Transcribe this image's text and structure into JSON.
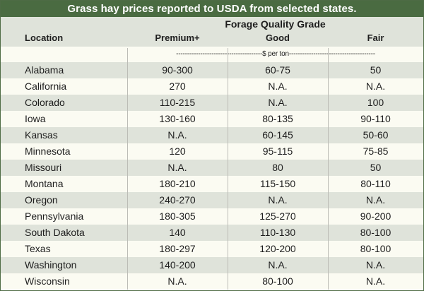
{
  "chart_data": {
    "type": "table",
    "title": "Grass hay prices reported to USDA from selected states.",
    "group_header": "Forage Quality Grade",
    "columns": [
      "Location",
      "Premium+",
      "Good",
      "Fair"
    ],
    "units": "---------------------------------------$ per ton---------------------------------------",
    "rows": [
      {
        "location": "Alabama",
        "premium": "90-300",
        "good": "60-75",
        "fair": "50"
      },
      {
        "location": "California",
        "premium": "270",
        "good": "N.A.",
        "fair": "N.A."
      },
      {
        "location": "Colorado",
        "premium": "110-215",
        "good": "N.A.",
        "fair": "100"
      },
      {
        "location": "Iowa",
        "premium": "130-160",
        "good": "80-135",
        "fair": "90-110"
      },
      {
        "location": "Kansas",
        "premium": "N.A.",
        "good": "60-145",
        "fair": "50-60"
      },
      {
        "location": "Minnesota",
        "premium": "120",
        "good": "95-115",
        "fair": "75-85"
      },
      {
        "location": "Missouri",
        "premium": "N.A.",
        "good": "80",
        "fair": "50"
      },
      {
        "location": "Montana",
        "premium": "180-210",
        "good": "115-150",
        "fair": "80-110"
      },
      {
        "location": "Oregon",
        "premium": "240-270",
        "good": "N.A.",
        "fair": "N.A."
      },
      {
        "location": "Pennsylvania",
        "premium": "180-305",
        "good": "125-270",
        "fair": "90-200"
      },
      {
        "location": "South Dakota",
        "premium": "140",
        "good": "110-130",
        "fair": "80-100"
      },
      {
        "location": "Texas",
        "premium": "180-297",
        "good": "120-200",
        "fair": "80-100"
      },
      {
        "location": "Washington",
        "premium": "140-200",
        "good": "N.A.",
        "fair": "N.A."
      },
      {
        "location": "Wisconsin",
        "premium": "N.A.",
        "good": "80-100",
        "fair": "N.A."
      }
    ]
  },
  "colors": {
    "title_bg": "#4a6b41",
    "title_text": "#ffffff",
    "row_shaded": "#dfe3da",
    "row_light": "#fbfbf2",
    "divider": "#bcbcb6"
  }
}
